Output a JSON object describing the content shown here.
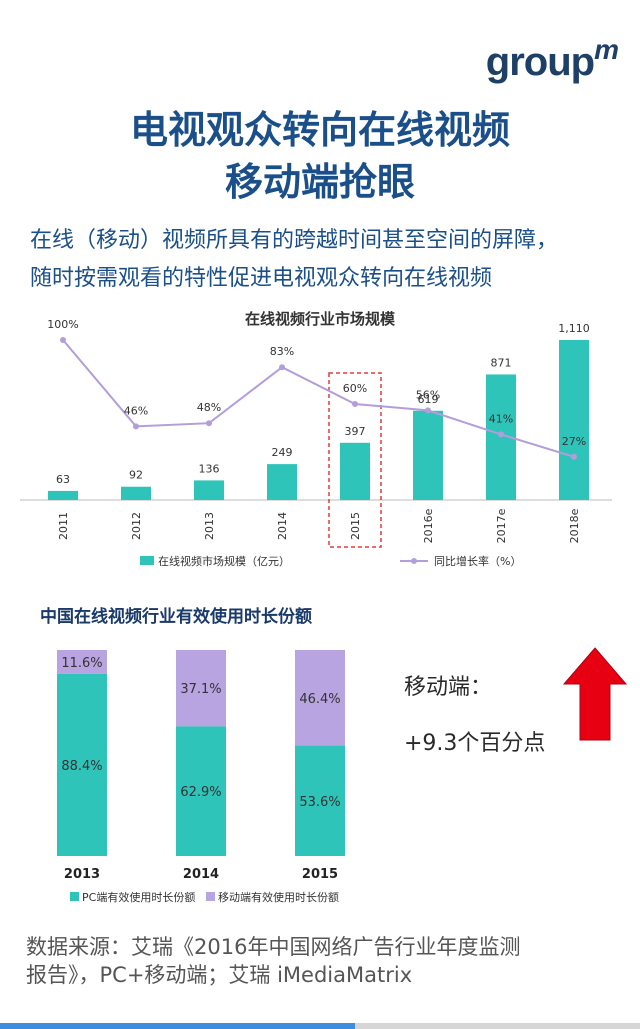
{
  "brand": {
    "logo_text": "group",
    "logo_sup": "m"
  },
  "header": {
    "title_line1": "电视观众转向在线视频",
    "title_line2": "移动端抢眼",
    "subtitle_line1": "在线（移动）视频所具有的跨越时间甚至空间的屏障，",
    "subtitle_line2": "随时按需观看的特性促进电视观众转向在线视频"
  },
  "note": {
    "label": "移动端：",
    "value": "+9.3个百分点"
  },
  "source": {
    "line1": "数据来源：艾瑞《2016年中国网络广告行业年度监测",
    "line2": "报告》，PC+移动端；艾瑞 iMediaMatrix"
  },
  "colors": {
    "teal": "#2ec4b9",
    "purple_line": "#b39ddb",
    "purple_bar": "#b8a4e0",
    "arrow_red": "#e60012",
    "highlight": "#e53935"
  },
  "chart_data": [
    {
      "type": "bar",
      "title": "在线视频行业市场规模",
      "categories": [
        "2011",
        "2012",
        "2013",
        "2014",
        "2015",
        "2016e",
        "2017e",
        "2018e"
      ],
      "series": [
        {
          "name": "在线视频市场规模（亿元）",
          "values": [
            63,
            92,
            136,
            249,
            397,
            619,
            871,
            1110
          ],
          "labels": [
            "63",
            "92",
            "136",
            "249",
            "397",
            "619",
            "871",
            "1,110"
          ]
        },
        {
          "name": "同比增长率（%）",
          "type": "line",
          "values": [
            100,
            46,
            48,
            83,
            60,
            56,
            41,
            27
          ],
          "labels": [
            "100%",
            "46%",
            "48%",
            "83%",
            "60%",
            "56%",
            "41%",
            "27%"
          ]
        }
      ],
      "highlight": "2015"
    },
    {
      "type": "bar",
      "stacked": true,
      "title": "中国在线视频行业有效使用时长份额",
      "categories": [
        "2013",
        "2014",
        "2015"
      ],
      "series": [
        {
          "name": "PC端有效使用时长份额",
          "values": [
            88.4,
            62.9,
            53.6
          ],
          "labels": [
            "88.4%",
            "62.9%",
            "53.6%"
          ]
        },
        {
          "name": "移动端有效使用时长份额",
          "values": [
            11.6,
            37.1,
            46.4
          ],
          "labels": [
            "11.6%",
            "37.1%",
            "46.4%"
          ]
        }
      ]
    }
  ]
}
